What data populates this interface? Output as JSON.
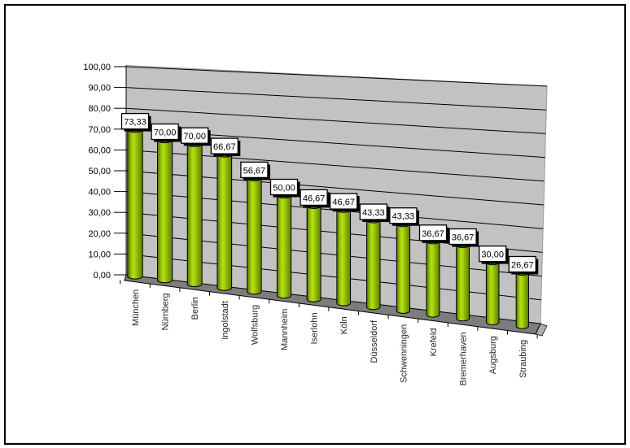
{
  "chart_data": {
    "type": "bar",
    "style": "3d-cylinder",
    "categories": [
      "München",
      "Nürnberg",
      "Berlin",
      "Ingolstadt",
      "Wolfsburg",
      "Mannheim",
      "Iserlohn",
      "Köln",
      "Düsseldorf",
      "Schwenningen",
      "Krefeld",
      "Bremerhaven",
      "Augsburg",
      "Straubing"
    ],
    "values": [
      73.33,
      70.0,
      70.0,
      66.67,
      56.67,
      50.0,
      46.67,
      46.67,
      43.33,
      43.33,
      36.67,
      36.67,
      30.0,
      26.67
    ],
    "data_labels": [
      "73,33",
      "70,00",
      "70,00",
      "66,67",
      "56,67",
      "50,00",
      "46,67",
      "46,67",
      "43,33",
      "43,33",
      "36,67",
      "36,67",
      "30,00",
      "26,67"
    ],
    "y_axis": {
      "min": 0,
      "max": 100,
      "step": 10,
      "tick_labels": [
        "0,00",
        "10,00",
        "20,00",
        "30,00",
        "40,00",
        "50,00",
        "60,00",
        "70,00",
        "80,00",
        "90,00",
        "100,00"
      ]
    },
    "grid": true,
    "legend": "none",
    "colors": {
      "wall": "#C2C2C2",
      "wall_edge": "#9A9A9A",
      "floor": "#7D7D7D",
      "floor_side": "#ACACAC",
      "gridline": "#000000",
      "bar_dark": "#4F6A02",
      "bar_mid": "#9DCA08",
      "bar_light": "#B2E011",
      "bar_top": "#96BA0A",
      "value_label_bg": "#FFFFFF",
      "value_label_border": "#000000",
      "value_label_shadow": "#000000",
      "axis_text": "#000000",
      "category_text": "#262626"
    }
  }
}
